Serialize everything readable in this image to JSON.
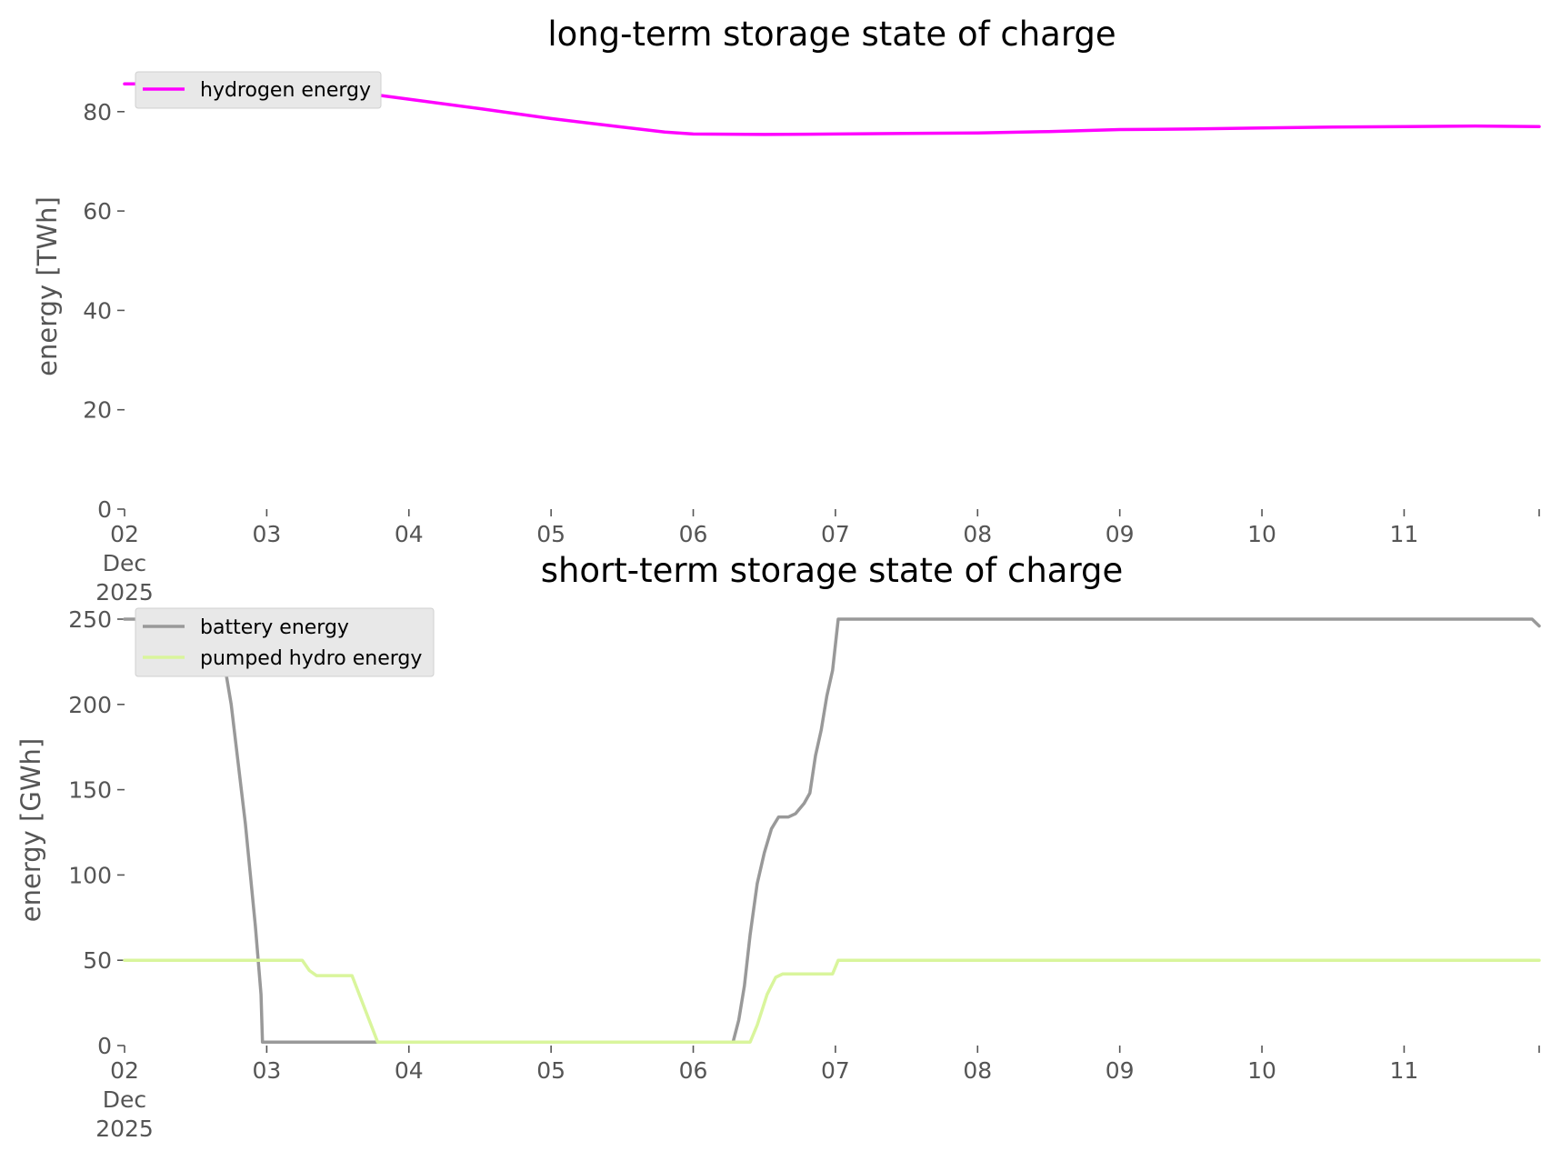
{
  "chart_data": [
    {
      "type": "line",
      "title": "long-term storage state of charge",
      "ylabel": "energy [TWh]",
      "xlabel": "",
      "ylim": [
        0,
        86
      ],
      "yticks": [
        0,
        20,
        40,
        60,
        80
      ],
      "xlim": [
        0,
        9.95
      ],
      "xticks": [
        {
          "x": 0,
          "lines": [
            "02",
            "Dec",
            "2025"
          ]
        },
        {
          "x": 1,
          "lines": [
            "03"
          ]
        },
        {
          "x": 2,
          "lines": [
            "04"
          ]
        },
        {
          "x": 3,
          "lines": [
            "05"
          ]
        },
        {
          "x": 4,
          "lines": [
            "06"
          ]
        },
        {
          "x": 5,
          "lines": [
            "07"
          ]
        },
        {
          "x": 6,
          "lines": [
            "08"
          ]
        },
        {
          "x": 7,
          "lines": [
            "09"
          ]
        },
        {
          "x": 8,
          "lines": [
            "10"
          ]
        },
        {
          "x": 9,
          "lines": [
            "11"
          ]
        },
        {
          "x": 9.95,
          "lines": [
            ""
          ]
        }
      ],
      "legend": "upper-left",
      "grid": false,
      "series": [
        {
          "name": "hydrogen energy",
          "color": "#ff00ff",
          "points": [
            [
              0,
              85.6
            ],
            [
              0.4,
              85.6
            ],
            [
              0.8,
              85.4
            ],
            [
              1.2,
              84.9
            ],
            [
              1.6,
              84.0
            ],
            [
              2.0,
              82.5
            ],
            [
              2.5,
              80.6
            ],
            [
              3.0,
              78.6
            ],
            [
              3.5,
              76.9
            ],
            [
              3.8,
              75.9
            ],
            [
              4.0,
              75.5
            ],
            [
              4.5,
              75.4
            ],
            [
              5.0,
              75.5
            ],
            [
              5.5,
              75.6
            ],
            [
              6.0,
              75.7
            ],
            [
              6.5,
              76.0
            ],
            [
              7.0,
              76.4
            ],
            [
              7.5,
              76.5
            ],
            [
              8.0,
              76.7
            ],
            [
              8.5,
              76.9
            ],
            [
              9.0,
              77.0
            ],
            [
              9.5,
              77.1
            ],
            [
              9.95,
              77.0
            ]
          ]
        }
      ]
    },
    {
      "type": "line",
      "title": "short-term storage state of charge",
      "ylabel": "energy [GWh]",
      "xlabel": "",
      "ylim": [
        0,
        250
      ],
      "yticks": [
        0,
        50,
        100,
        150,
        200,
        250
      ],
      "xlim": [
        0,
        9.95
      ],
      "xticks": [
        {
          "x": 0,
          "lines": [
            "02",
            "Dec",
            "2025"
          ]
        },
        {
          "x": 1,
          "lines": [
            "03"
          ]
        },
        {
          "x": 2,
          "lines": [
            "04"
          ]
        },
        {
          "x": 3,
          "lines": [
            "05"
          ]
        },
        {
          "x": 4,
          "lines": [
            "06"
          ]
        },
        {
          "x": 5,
          "lines": [
            "07"
          ]
        },
        {
          "x": 6,
          "lines": [
            "08"
          ]
        },
        {
          "x": 7,
          "lines": [
            "09"
          ]
        },
        {
          "x": 8,
          "lines": [
            "10"
          ]
        },
        {
          "x": 9,
          "lines": [
            "11"
          ]
        },
        {
          "x": 9.95,
          "lines": [
            ""
          ]
        }
      ],
      "legend": "upper-left",
      "grid": false,
      "series": [
        {
          "name": "battery energy",
          "color": "#999999",
          "points": [
            [
              0,
              250
            ],
            [
              0.65,
              250
            ],
            [
              0.75,
              200
            ],
            [
              0.85,
              130
            ],
            [
              0.92,
              70
            ],
            [
              0.96,
              30
            ],
            [
              0.97,
              2
            ],
            [
              4.28,
              2
            ],
            [
              4.32,
              15
            ],
            [
              4.36,
              35
            ],
            [
              4.4,
              65
            ],
            [
              4.45,
              95
            ],
            [
              4.5,
              113
            ],
            [
              4.55,
              127
            ],
            [
              4.6,
              134
            ],
            [
              4.67,
              134
            ],
            [
              4.72,
              136
            ],
            [
              4.78,
              142
            ],
            [
              4.82,
              148
            ],
            [
              4.86,
              170
            ],
            [
              4.9,
              185
            ],
            [
              4.94,
              205
            ],
            [
              4.98,
              220
            ],
            [
              5.02,
              250
            ],
            [
              9.9,
              250
            ],
            [
              9.95,
              246
            ]
          ]
        },
        {
          "name": "pumped hydro energy",
          "color": "#d9f59c",
          "points": [
            [
              0,
              50
            ],
            [
              1.25,
              50
            ],
            [
              1.3,
              44
            ],
            [
              1.35,
              41
            ],
            [
              1.6,
              41
            ],
            [
              1.78,
              2
            ],
            [
              4.4,
              2
            ],
            [
              4.45,
              12
            ],
            [
              4.52,
              30
            ],
            [
              4.58,
              40
            ],
            [
              4.63,
              42
            ],
            [
              4.98,
              42
            ],
            [
              5.02,
              50
            ],
            [
              9.95,
              50
            ]
          ]
        }
      ]
    }
  ]
}
